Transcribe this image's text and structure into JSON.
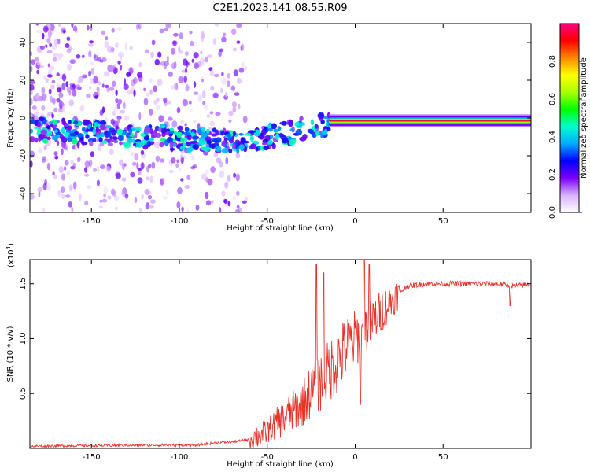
{
  "chart_data": [
    {
      "type": "heatmap",
      "title": "C2E1.2023.141.08.55.R09",
      "xlabel": "Height of straight line (km)",
      "ylabel": "Frequency (Hz)",
      "xlim": [
        -185,
        100
      ],
      "ylim": [
        -50,
        50
      ],
      "x_ticks": [
        "-150",
        "-100",
        "-50",
        "0",
        "50"
      ],
      "y_ticks": [
        "40",
        "20",
        "0",
        "-20",
        "-40"
      ],
      "colorbar": {
        "label": "Normalized spectral amplitude",
        "range": [
          0,
          1
        ],
        "ticks": [
          "0.0",
          "0.2",
          "0.4",
          "0.6",
          "0.8"
        ],
        "colors": [
          "#ffffff",
          "#d9b3ff",
          "#7b00ff",
          "#0000ff",
          "#00aaff",
          "#00ffcc",
          "#00ff00",
          "#aaff00",
          "#ffff00",
          "#ff8800",
          "#ff0000",
          "#ff0080"
        ]
      },
      "ridge": {
        "description_points_x": [
          -185,
          -160,
          -130,
          -100,
          -80,
          -65,
          -50,
          -35,
          -25,
          -15,
          -5,
          0,
          10,
          30,
          60,
          98
        ],
        "description_points_y": [
          -6,
          -7,
          -9,
          -11,
          -12,
          -12,
          -10,
          -7,
          -5,
          -3,
          -2,
          -1.5,
          -1.5,
          -1.5,
          -1.5,
          -1.5
        ]
      }
    },
    {
      "type": "line",
      "xlabel": "Height of straight line (km)",
      "ylabel": "SNR (10 * v/v)",
      "y_multiplier_label": "(x10",
      "y_multiplier_exp": "4",
      "y_multiplier_close": ")",
      "xlim": [
        -185,
        100
      ],
      "ylim": [
        0,
        1.72
      ],
      "x_ticks": [
        "-150",
        "-100",
        "-50",
        "0",
        "50"
      ],
      "y_ticks": [
        "1.5",
        "1.0",
        "0.5"
      ],
      "line_color": "#e8322b",
      "x": [
        -185,
        -120,
        -90,
        -80,
        -70,
        -60,
        -50,
        -45,
        -40,
        -35,
        -30,
        -25,
        -20,
        -15,
        -10,
        -5,
        0,
        5,
        10,
        15,
        20,
        25,
        30,
        40,
        50,
        60,
        70,
        80,
        85,
        90,
        98
      ],
      "y": [
        0.02,
        0.03,
        0.03,
        0.05,
        0.06,
        0.08,
        0.15,
        0.22,
        0.28,
        0.34,
        0.42,
        0.52,
        0.6,
        0.7,
        0.8,
        0.92,
        1.0,
        1.08,
        1.16,
        1.25,
        1.34,
        1.42,
        1.48,
        1.5,
        1.5,
        1.5,
        1.5,
        1.5,
        1.49,
        1.48,
        1.49
      ],
      "spikes": [
        {
          "x": -22,
          "y": 1.68
        },
        {
          "x": -18,
          "y": 1.6
        },
        {
          "x": 5,
          "y": 1.72
        },
        {
          "x": 8,
          "y": 1.68
        },
        {
          "x": 3,
          "y": 0.4
        },
        {
          "x": 88,
          "y": 1.3
        }
      ]
    }
  ]
}
